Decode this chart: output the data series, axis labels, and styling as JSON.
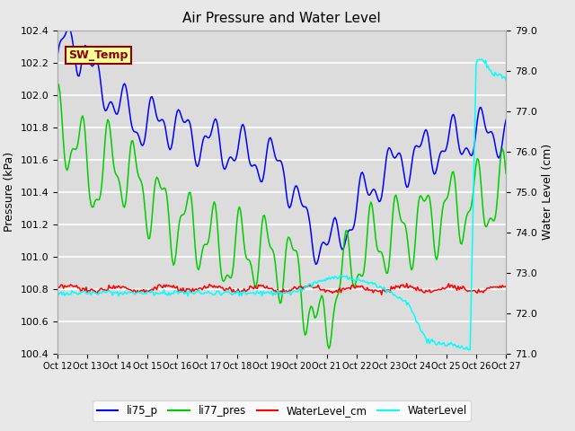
{
  "title": "Air Pressure and Water Level",
  "ylabel_left": "Pressure (kPa)",
  "ylabel_right": "Water Level (cm)",
  "ylim_left": [
    100.4,
    102.4
  ],
  "ylim_right": [
    71.0,
    79.0
  ],
  "xtick_labels": [
    "Oct 12",
    "Oct 13",
    "Oct 14",
    "Oct 15",
    "Oct 16",
    "Oct 17",
    "Oct 18",
    "Oct 19",
    "Oct 20",
    "Oct 21",
    "Oct 22",
    "Oct 23",
    "Oct 24",
    "Oct 25",
    "Oct 26",
    "Oct 27"
  ],
  "legend_labels": [
    "li75_p",
    "li77_pres",
    "WaterLevel_cm",
    "WaterLevel"
  ],
  "legend_colors": [
    "blue",
    "lime",
    "red",
    "cyan"
  ],
  "annotation_text": "SW_Temp",
  "annotation_bg": "#ffff99",
  "annotation_border": "#8b0000",
  "bg_color": "#e8e8e8",
  "plot_bg": "#dcdcdc",
  "grid_color": "white",
  "li75_color": "blue",
  "li77_color": "#00cc00",
  "wl_cm_color": "red",
  "wl_color": "cyan",
  "title_fontsize": 11,
  "label_fontsize": 9,
  "tick_fontsize": 8
}
